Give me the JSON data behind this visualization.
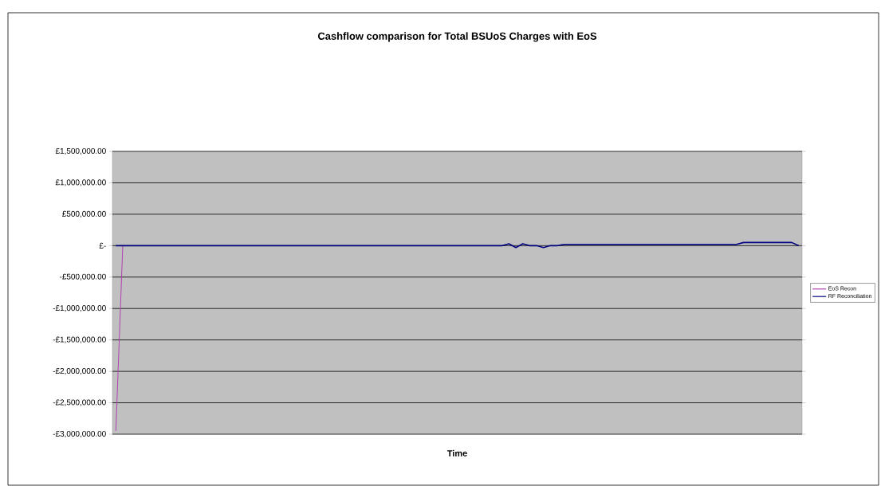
{
  "chart_data": {
    "type": "line",
    "title": "Cashflow comparison for Total BSUoS Charges with EoS",
    "xlabel": "Time",
    "categories": [
      null,
      null,
      null,
      null,
      null,
      null,
      null,
      null,
      null,
      null,
      null,
      null,
      null,
      null,
      null,
      null,
      null,
      null,
      null,
      null,
      null,
      null,
      null,
      null,
      null,
      null,
      null,
      null,
      null,
      null,
      null,
      null,
      null,
      null,
      null,
      null,
      null,
      null,
      null,
      null,
      null,
      null,
      null,
      null,
      null,
      null,
      null,
      null,
      null,
      null,
      null,
      null,
      null,
      null,
      null,
      null,
      null,
      null,
      null,
      null,
      null,
      null,
      null,
      null,
      null,
      null,
      null,
      null,
      null,
      null,
      null,
      null,
      null,
      null,
      null,
      null,
      null,
      null,
      null,
      null,
      null,
      null,
      null,
      null,
      null,
      null,
      null,
      null,
      null,
      null,
      null,
      null,
      null,
      null,
      null,
      null,
      null,
      null,
      null,
      null
    ],
    "series": [
      {
        "name": "EoS Recon",
        "color": "#b040b0",
        "values": [
          -2950000,
          0,
          null,
          null,
          null,
          null,
          null,
          null,
          null,
          null,
          null,
          null,
          null,
          null,
          null,
          null,
          null,
          null,
          null,
          null,
          null,
          null,
          null,
          null,
          null,
          null,
          null,
          null,
          null,
          null,
          null,
          null,
          null,
          null,
          null,
          null,
          null,
          null,
          null,
          null,
          null,
          null,
          null,
          null,
          null,
          null,
          null,
          null,
          null,
          null,
          null,
          null,
          null,
          null,
          null,
          null,
          null,
          null,
          null,
          null,
          null,
          null,
          null,
          null,
          null,
          null,
          null,
          null,
          null,
          null,
          null,
          null,
          null,
          null,
          null,
          null,
          null,
          null,
          null,
          null,
          null,
          null,
          null,
          null,
          null,
          null,
          null,
          null,
          null,
          null,
          null,
          null,
          null,
          null,
          null,
          null,
          null,
          null,
          null,
          null
        ]
      },
      {
        "name": "RF Reconciliation",
        "color": "#000080",
        "values": [
          0,
          0,
          0,
          0,
          0,
          0,
          0,
          0,
          0,
          0,
          0,
          0,
          0,
          0,
          0,
          0,
          0,
          0,
          0,
          0,
          0,
          0,
          0,
          0,
          0,
          0,
          0,
          0,
          0,
          0,
          0,
          0,
          0,
          0,
          0,
          0,
          0,
          0,
          0,
          0,
          0,
          0,
          0,
          0,
          0,
          0,
          0,
          0,
          0,
          0,
          0,
          0,
          0,
          0,
          0,
          0,
          0,
          30000,
          -30000,
          30000,
          0,
          0,
          -30000,
          0,
          0,
          20000,
          20000,
          20000,
          20000,
          20000,
          20000,
          20000,
          20000,
          20000,
          20000,
          20000,
          20000,
          20000,
          20000,
          20000,
          20000,
          20000,
          20000,
          20000,
          20000,
          20000,
          20000,
          20000,
          20000,
          20000,
          20000,
          50000,
          50000,
          50000,
          50000,
          50000,
          50000,
          50000,
          50000,
          0
        ]
      }
    ],
    "ylim": [
      -3000000,
      1500000
    ],
    "yticks": [
      {
        "value": -3000000,
        "label": "-£3,000,000.00"
      },
      {
        "value": -2500000,
        "label": "-£2,500,000.00"
      },
      {
        "value": -2000000,
        "label": "-£2,000,000.00"
      },
      {
        "value": -1500000,
        "label": "-£1,500,000.00"
      },
      {
        "value": -1000000,
        "label": "-£1,000,000.00"
      },
      {
        "value": -500000,
        "label": "-£500,000.00"
      },
      {
        "value": 0,
        "label": "£-"
      },
      {
        "value": 500000,
        "label": "£500,000.00"
      },
      {
        "value": 1000000,
        "label": "£1,000,000.00"
      },
      {
        "value": 1500000,
        "label": "£1,500,000.00"
      }
    ],
    "grid": "y",
    "legend": "right",
    "tick_labels": "y",
    "marker": "none",
    "line_style": "solid"
  }
}
